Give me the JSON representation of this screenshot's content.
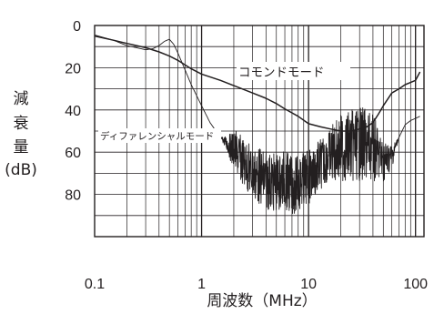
{
  "chart_data": {
    "type": "line",
    "title": "",
    "xlabel": "周波数（MHz）",
    "ylabel": "減衰量 (dB)",
    "ylabel_chars": [
      "減",
      "衰",
      "量",
      "(dB)"
    ],
    "x_scale": "log",
    "xlim": [
      0.1,
      120
    ],
    "ylim": [
      0,
      100
    ],
    "y_inverted": true,
    "grid": true,
    "x_ticks": [
      {
        "value": 0.1,
        "label": "0.1"
      },
      {
        "value": 1,
        "label": "1"
      },
      {
        "value": 10,
        "label": "10"
      },
      {
        "value": 100,
        "label": "100"
      }
    ],
    "y_ticks": [
      {
        "value": 0,
        "label": "0"
      },
      {
        "value": 20,
        "label": "20"
      },
      {
        "value": 40,
        "label": "40"
      },
      {
        "value": 60,
        "label": "60"
      },
      {
        "value": 80,
        "label": "80"
      }
    ],
    "series": [
      {
        "name": "コモンドモード",
        "noisy": false,
        "points": [
          [
            0.1,
            5
          ],
          [
            0.15,
            7
          ],
          [
            0.2,
            8.5
          ],
          [
            0.3,
            10.5
          ],
          [
            0.4,
            12.5
          ],
          [
            0.5,
            14.5
          ],
          [
            0.6,
            16.5
          ],
          [
            0.8,
            20.5
          ],
          [
            1,
            23
          ],
          [
            1.5,
            26
          ],
          [
            2,
            28.5
          ],
          [
            3,
            32
          ],
          [
            4,
            34.5
          ],
          [
            5,
            37
          ],
          [
            6,
            39.5
          ],
          [
            8,
            43
          ],
          [
            10,
            46.5
          ],
          [
            13,
            48
          ],
          [
            16,
            49
          ],
          [
            20,
            50
          ],
          [
            25,
            50
          ],
          [
            30,
            49
          ],
          [
            35,
            48
          ],
          [
            40,
            46
          ],
          [
            45,
            42
          ],
          [
            50,
            38
          ],
          [
            60,
            32
          ],
          [
            70,
            30
          ],
          [
            80,
            28
          ],
          [
            90,
            27
          ],
          [
            100,
            26
          ],
          [
            110,
            22
          ]
        ]
      },
      {
        "name": "ディファレンシャルモード",
        "noisy": true,
        "points": [
          [
            0.1,
            4.5
          ],
          [
            0.15,
            7
          ],
          [
            0.2,
            9.5
          ],
          [
            0.3,
            11.5
          ],
          [
            0.35,
            11
          ],
          [
            0.4,
            9.5
          ],
          [
            0.45,
            7.5
          ],
          [
            0.5,
            6.5
          ],
          [
            0.55,
            9
          ],
          [
            0.6,
            13
          ],
          [
            0.7,
            21
          ],
          [
            0.8,
            28
          ],
          [
            1,
            38
          ],
          [
            1.2,
            46
          ],
          [
            1.5,
            53
          ],
          [
            2,
            59
          ],
          [
            2.5,
            65
          ],
          [
            3,
            70
          ],
          [
            4,
            73
          ],
          [
            5,
            75
          ],
          [
            6,
            73
          ],
          [
            7,
            76
          ],
          [
            8,
            75
          ],
          [
            10,
            72
          ],
          [
            12,
            68
          ],
          [
            15,
            62
          ],
          [
            20,
            58
          ],
          [
            25,
            57
          ],
          [
            30,
            56
          ],
          [
            40,
            58
          ],
          [
            50,
            64
          ],
          [
            60,
            62
          ],
          [
            70,
            53
          ],
          [
            80,
            47
          ],
          [
            90,
            45
          ],
          [
            100,
            44
          ],
          [
            110,
            43
          ]
        ],
        "noise_band": [
          [
            0.1,
            0
          ],
          [
            1.5,
            0
          ],
          [
            1.8,
            5
          ],
          [
            2,
            10
          ],
          [
            3,
            13
          ],
          [
            4,
            14
          ],
          [
            6,
            14
          ],
          [
            10,
            13
          ],
          [
            15,
            12
          ],
          [
            20,
            16
          ],
          [
            30,
            18
          ],
          [
            40,
            16
          ],
          [
            50,
            10
          ],
          [
            60,
            6
          ],
          [
            70,
            0
          ],
          [
            110,
            0
          ]
        ]
      }
    ],
    "annotations": [
      {
        "text": "コモンドモード",
        "series": 0
      },
      {
        "text": "ディファレンシャルモード",
        "series": 1
      }
    ]
  }
}
